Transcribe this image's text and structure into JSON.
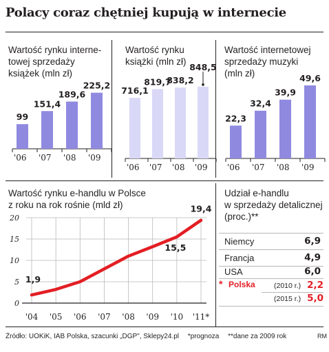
{
  "title": "Polacy coraz chętniej kupują w internecie",
  "colors": {
    "bar": "#8f8ae0",
    "bar_light": "#d9d8f6",
    "line": "#e31e24",
    "grid": "#b9b9b9",
    "text": "#231f20"
  },
  "chart_data": [
    {
      "type": "bar",
      "title_lines": [
        "Wartość rynku interne-",
        "towej sprzedaży",
        "książek (mln zł)"
      ],
      "categories": [
        "'06",
        "'07",
        "'08",
        "'09"
      ],
      "values": [
        99,
        151.4,
        189.6,
        225.2
      ],
      "labels": [
        "99",
        "151,4",
        "189,6",
        "225,2"
      ],
      "ylim": [
        0,
        260
      ]
    },
    {
      "type": "bar",
      "title_lines": [
        "Wartość rynku",
        "książki (mln zł)"
      ],
      "categories": [
        "'06",
        "'07",
        "'08",
        "'09"
      ],
      "values": [
        716.1,
        819.7,
        838.2,
        848.5
      ],
      "labels": [
        "716,1",
        "819,7",
        "838,2",
        "848,5"
      ],
      "ylim": [
        0,
        1010
      ]
    },
    {
      "type": "bar",
      "title_lines": [
        "Wartość internetowej",
        "sprzedaży muzyki",
        "(mln zł)"
      ],
      "categories": [
        "'06",
        "'07",
        "'08",
        "'09"
      ],
      "values": [
        22.3,
        32.4,
        39.9,
        49.6
      ],
      "labels": [
        "22,3",
        "32,4",
        "39,9",
        "49,6"
      ],
      "ylim": [
        0,
        58
      ]
    },
    {
      "type": "line",
      "title_lines": [
        "Wartość rynku e-handlu w Polsce",
        "z roku na rok rośnie (mld zł)"
      ],
      "x": [
        "'04",
        "'05",
        "'06",
        "'07",
        "'08",
        "'09",
        "'10",
        "'11*"
      ],
      "values": [
        1.9,
        3.2,
        5.0,
        8.0,
        11.0,
        13.2,
        15.5,
        19.4
      ],
      "point_labels": {
        "0": "1,9",
        "6": "15,5",
        "7": "19,4"
      },
      "yticks": [
        "0",
        "5",
        "10",
        "15",
        "20"
      ],
      "ylim": [
        0,
        20
      ],
      "grid": true
    },
    {
      "type": "table",
      "title_lines": [
        "Udział e-handlu",
        "w sprzedaży detalicznej",
        "(proc.)**"
      ],
      "rows": [
        {
          "country": "Niemcy",
          "value": "6,9"
        },
        {
          "country": "Francja",
          "value": "4,9"
        },
        {
          "country": "USA",
          "value": "6,0"
        }
      ],
      "highlight": {
        "marker": "*",
        "country": "Polska",
        "entries": [
          {
            "year": "(2010 r.)",
            "value": "2,2"
          },
          {
            "year": "(2015 r.)",
            "value": "5,0"
          }
        ]
      }
    }
  ],
  "footer": {
    "source": "Źródło: UOKiK, IAB Polska, szacunki „DGP\", Sklepy24.pl",
    "note1": "*prognoza",
    "note2": "**dane za 2009 rok",
    "credit": "RM"
  }
}
